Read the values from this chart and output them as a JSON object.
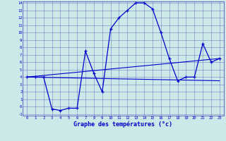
{
  "xlabel": "Graphe des températures (°c)",
  "background_color": "#cce8e8",
  "grid_color": "#5555bb",
  "line_color": "#0000cc",
  "x_min": 0,
  "x_max": 23,
  "y_min": -1,
  "y_max": 14,
  "main_x": [
    0,
    1,
    2,
    3,
    4,
    5,
    6,
    7,
    8,
    9,
    10,
    11,
    12,
    13,
    14,
    15,
    16,
    17,
    18,
    19,
    20,
    21,
    22,
    23
  ],
  "main_y": [
    4,
    4,
    4,
    -0.3,
    -0.5,
    -0.2,
    -0.2,
    7.5,
    4.5,
    2.0,
    10.5,
    12.0,
    13.0,
    14.0,
    14.0,
    13.2,
    10.0,
    6.5,
    3.5,
    4.0,
    4.0,
    8.5,
    6.0,
    6.5
  ],
  "trend1_x": [
    0,
    23
  ],
  "trend1_y": [
    4.0,
    6.5
  ],
  "trend2_x": [
    0,
    23
  ],
  "trend2_y": [
    4.0,
    3.5
  ]
}
